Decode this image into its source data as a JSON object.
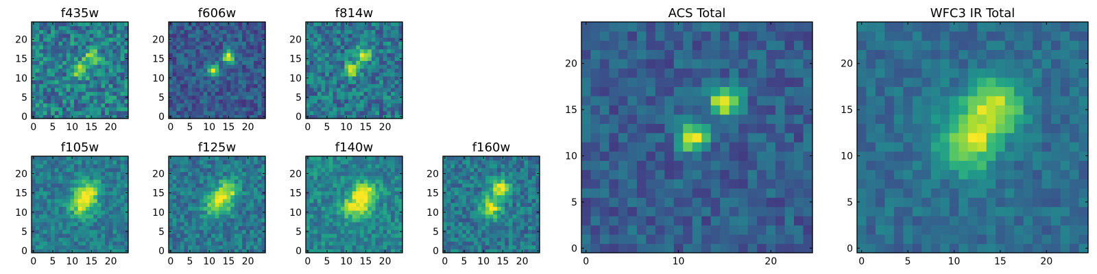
{
  "figure": {
    "colormap": "viridis"
  },
  "chart_data": [
    {
      "id": "f435w",
      "type": "heatmap",
      "title": "f435w",
      "grid_size": 25,
      "xticks": [
        "0",
        "5",
        "10",
        "15",
        "20"
      ],
      "yticks": [
        "0",
        "5",
        "10",
        "15",
        "20"
      ],
      "xlim": [
        0,
        25
      ],
      "ylim": [
        0,
        25
      ],
      "noise": 0.42,
      "background": 0.42,
      "sources": [
        {
          "x": 12.5,
          "y": 12.5,
          "amp": 0.55,
          "sigma": 1.4
        },
        {
          "x": 15.5,
          "y": 16.0,
          "amp": 0.5,
          "sigma": 1.3
        }
      ]
    },
    {
      "id": "f606w",
      "type": "heatmap",
      "title": "f606w",
      "grid_size": 25,
      "xticks": [
        "0",
        "5",
        "10",
        "15",
        "20"
      ],
      "yticks": [
        "0",
        "5",
        "10",
        "15",
        "20"
      ],
      "xlim": [
        0,
        25
      ],
      "ylim": [
        0,
        25
      ],
      "noise": 0.28,
      "background": 0.28,
      "sources": [
        {
          "x": 11.5,
          "y": 12.5,
          "amp": 0.75,
          "sigma": 1.1
        },
        {
          "x": 15.5,
          "y": 16.0,
          "amp": 0.75,
          "sigma": 1.1
        }
      ]
    },
    {
      "id": "f814w",
      "type": "heatmap",
      "title": "f814w",
      "grid_size": 25,
      "xticks": [
        "0",
        "5",
        "10",
        "15",
        "20"
      ],
      "yticks": [
        "0",
        "5",
        "10",
        "15",
        "20"
      ],
      "xlim": [
        0,
        25
      ],
      "ylim": [
        0,
        25
      ],
      "noise": 0.38,
      "background": 0.4,
      "sources": [
        {
          "x": 12.0,
          "y": 12.5,
          "amp": 0.55,
          "sigma": 1.3
        },
        {
          "x": 15.0,
          "y": 16.5,
          "amp": 0.6,
          "sigma": 1.3
        }
      ]
    },
    {
      "id": "f105w",
      "type": "heatmap",
      "title": "f105w",
      "grid_size": 25,
      "xticks": [
        "0",
        "5",
        "10",
        "15",
        "20"
      ],
      "yticks": [
        "0",
        "5",
        "10",
        "15",
        "20"
      ],
      "xlim": [
        0,
        25
      ],
      "ylim": [
        0,
        25
      ],
      "noise": 0.28,
      "background": 0.42,
      "sources": [
        {
          "x": 13.0,
          "y": 12.5,
          "amp": 0.5,
          "sigma": 2.2
        },
        {
          "x": 15.0,
          "y": 16.0,
          "amp": 0.45,
          "sigma": 2.0
        }
      ]
    },
    {
      "id": "f125w",
      "type": "heatmap",
      "title": "f125w",
      "grid_size": 25,
      "xticks": [
        "0",
        "5",
        "10",
        "15",
        "20"
      ],
      "yticks": [
        "0",
        "5",
        "10",
        "15",
        "20"
      ],
      "xlim": [
        0,
        25
      ],
      "ylim": [
        0,
        25
      ],
      "noise": 0.3,
      "background": 0.4,
      "sources": [
        {
          "x": 12.5,
          "y": 12.5,
          "amp": 0.5,
          "sigma": 2.2
        },
        {
          "x": 15.0,
          "y": 16.0,
          "amp": 0.5,
          "sigma": 2.0
        }
      ]
    },
    {
      "id": "f140w",
      "type": "heatmap",
      "title": "f140w",
      "grid_size": 25,
      "xticks": [
        "0",
        "5",
        "10",
        "15",
        "20"
      ],
      "yticks": [
        "0",
        "5",
        "10",
        "15",
        "20"
      ],
      "xlim": [
        0,
        25
      ],
      "ylim": [
        0,
        25
      ],
      "noise": 0.3,
      "background": 0.45,
      "sources": [
        {
          "x": 13.0,
          "y": 12.0,
          "amp": 0.5,
          "sigma": 2.3
        },
        {
          "x": 15.5,
          "y": 15.5,
          "amp": 0.5,
          "sigma": 2.1
        }
      ]
    },
    {
      "id": "f160w",
      "type": "heatmap",
      "title": "f160w",
      "grid_size": 25,
      "xticks": [
        "0",
        "5",
        "10",
        "15",
        "20"
      ],
      "yticks": [
        "0",
        "5",
        "10",
        "15",
        "20"
      ],
      "xlim": [
        0,
        25
      ],
      "ylim": [
        0,
        25
      ],
      "noise": 0.32,
      "background": 0.4,
      "sources": [
        {
          "x": 12.5,
          "y": 12.0,
          "amp": 0.55,
          "sigma": 1.8
        },
        {
          "x": 15.0,
          "y": 16.5,
          "amp": 0.55,
          "sigma": 1.7
        }
      ]
    },
    {
      "id": "acs-total",
      "type": "heatmap",
      "title": "ACS Total",
      "grid_size": 25,
      "xticks": [
        "0",
        "10",
        "20"
      ],
      "yticks": [
        "0",
        "5",
        "10",
        "15",
        "20"
      ],
      "xlim": [
        0,
        25
      ],
      "ylim": [
        0,
        25
      ],
      "noise": 0.25,
      "background": 0.3,
      "sources": [
        {
          "x": 12.0,
          "y": 12.5,
          "amp": 0.72,
          "sigma": 1.1
        },
        {
          "x": 15.5,
          "y": 16.5,
          "amp": 0.72,
          "sigma": 1.15
        }
      ]
    },
    {
      "id": "wfc3-ir-total",
      "type": "heatmap",
      "title": "WFC3 IR Total",
      "grid_size": 25,
      "xticks": [
        "0",
        "5",
        "10",
        "15",
        "20"
      ],
      "yticks": [
        "0",
        "5",
        "10",
        "15",
        "20"
      ],
      "xlim": [
        0,
        25
      ],
      "ylim": [
        0,
        25
      ],
      "noise": 0.2,
      "background": 0.36,
      "sources": [
        {
          "x": 12.0,
          "y": 12.0,
          "amp": 0.55,
          "sigma": 2.3
        },
        {
          "x": 15.0,
          "y": 16.0,
          "amp": 0.55,
          "sigma": 2.1
        }
      ]
    }
  ]
}
